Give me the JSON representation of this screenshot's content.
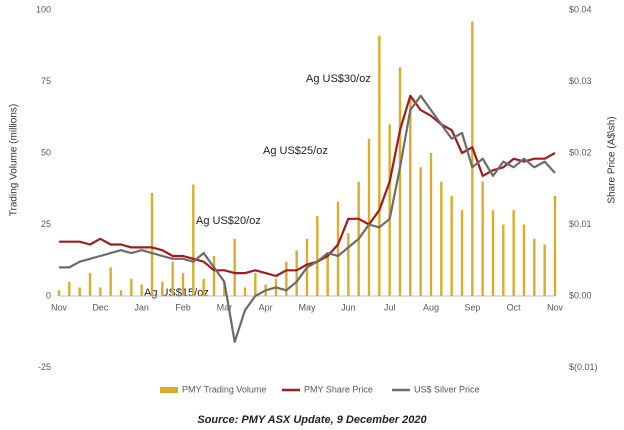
{
  "chart_data": {
    "type": "combo",
    "y_label": "Trading Volume (millions)",
    "y2_label": "Share Price (A$\\sh)",
    "source": "Source: PMY ASX Update, 9 December 2020",
    "annotations": [
      "Ag US$15/oz",
      "Ag US$20/oz",
      "Ag US$25/oz",
      "Ag US$30/oz"
    ],
    "categories": [
      "Nov",
      null,
      null,
      null,
      "Dec",
      null,
      null,
      null,
      "Jan",
      null,
      null,
      null,
      "Feb",
      null,
      null,
      null,
      "Mar",
      null,
      null,
      null,
      "Apr",
      null,
      null,
      null,
      "May",
      null,
      null,
      null,
      "Jun",
      null,
      null,
      null,
      "Jul",
      null,
      null,
      null,
      "Aug",
      null,
      null,
      null,
      "Sep",
      null,
      null,
      null,
      "Oct",
      null,
      null,
      null,
      "Nov"
    ],
    "ylim": [
      -25,
      100
    ],
    "yticks": [
      -25,
      0,
      25,
      50,
      75,
      100
    ],
    "y2lim": [
      -0.01,
      0.04
    ],
    "y2ticks": [
      {
        "value": -0.01,
        "label": "$(0.01)"
      },
      {
        "value": 0,
        "label": "$0.00"
      },
      {
        "value": 0.01,
        "label": "$0.01"
      },
      {
        "value": 0.02,
        "label": "$0.02"
      },
      {
        "value": 0.03,
        "label": "$0.03"
      },
      {
        "value": 0.04,
        "label": "$0.04"
      }
    ],
    "grid": false,
    "series": [
      {
        "name": "PMY Trading Volume",
        "type": "bar",
        "color": "#d9ad2b",
        "values": [
          2,
          5,
          3,
          8,
          3,
          10,
          2,
          6,
          4,
          36,
          5,
          12,
          8,
          39,
          6,
          14,
          5,
          20,
          3,
          8,
          4,
          6,
          12,
          16,
          20,
          28,
          15,
          33,
          22,
          40,
          55,
          91,
          60,
          80,
          70,
          45,
          50,
          40,
          35,
          30,
          96,
          40,
          30,
          25,
          30,
          25,
          20,
          18,
          35
        ]
      },
      {
        "name": "PMY Share Price",
        "type": "line",
        "axis": "y2",
        "color": "#a01c1c",
        "values": [
          0.0076,
          0.0076,
          0.0076,
          0.0072,
          0.008,
          0.0072,
          0.0072,
          0.0068,
          0.0068,
          0.0068,
          0.0064,
          0.0056,
          0.0056,
          0.0052,
          0.0048,
          0.0036,
          0.0036,
          0.0032,
          0.0032,
          0.0036,
          0.0032,
          0.0028,
          0.0036,
          0.0036,
          0.0044,
          0.0048,
          0.0056,
          0.0072,
          0.0108,
          0.0108,
          0.01,
          0.012,
          0.016,
          0.0232,
          0.028,
          0.026,
          0.0252,
          0.024,
          0.0232,
          0.02,
          0.0208,
          0.0168,
          0.0176,
          0.018,
          0.0192,
          0.0188,
          0.0192,
          0.0192,
          0.02
        ]
      },
      {
        "name": "US$ Silver Price",
        "type": "line",
        "color": "#6b6b6b",
        "values": [
          10,
          10,
          12,
          13,
          14,
          15,
          16,
          15,
          16,
          15,
          14,
          13,
          13,
          12,
          15,
          10,
          5,
          -16,
          -5,
          0,
          2,
          3,
          2,
          5,
          10,
          12,
          15,
          14,
          17,
          20,
          25,
          24,
          27,
          45,
          65,
          70,
          65,
          60,
          55,
          57,
          45,
          48,
          42,
          47,
          45,
          48,
          45,
          47,
          43
        ]
      }
    ]
  }
}
